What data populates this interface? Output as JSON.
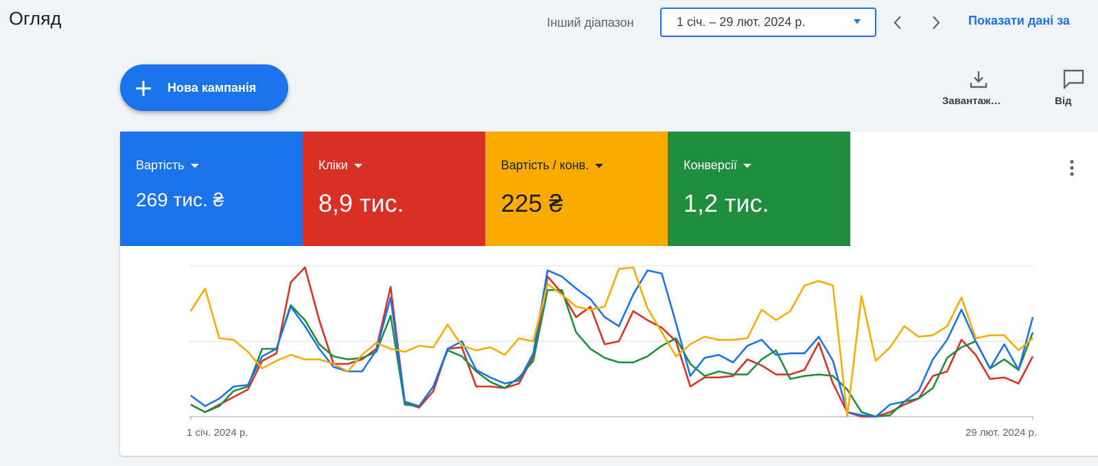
{
  "header": {
    "title": "Огляд",
    "range_label": "Інший діапазон",
    "date_range": "1 січ. – 29 лют. 2024 р.",
    "compare_link": "Показати дані за"
  },
  "toolbar": {
    "new_campaign": "Нова кампанія",
    "download": "Завантаж…",
    "feedback": "Від"
  },
  "chart_data": {
    "type": "line",
    "categories": [
      "1 січ. 2024 р.",
      null,
      null,
      null,
      null,
      null,
      null,
      null,
      null,
      null,
      null,
      null,
      null,
      null,
      null,
      null,
      null,
      null,
      null,
      null,
      null,
      null,
      null,
      null,
      null,
      null,
      null,
      null,
      null,
      null,
      null,
      null,
      null,
      null,
      null,
      null,
      null,
      null,
      null,
      null,
      null,
      null,
      null,
      null,
      null,
      null,
      null,
      null,
      null,
      null,
      null,
      null,
      null,
      null,
      null,
      null,
      null,
      null,
      null,
      "29 лют. 2024 р."
    ],
    "ylim": [
      0,
      100
    ],
    "gridlines": [
      0,
      50,
      100
    ],
    "series": [
      {
        "name": "Вартість",
        "total": "269 тис. ₴",
        "color": "#1a73e8",
        "text_color": "#ffffff",
        "values": [
          14,
          7,
          12,
          20,
          21,
          40,
          45,
          73,
          60,
          45,
          33,
          30,
          30,
          44,
          79,
          10,
          7,
          20,
          45,
          50,
          31,
          26,
          22,
          24,
          42,
          97,
          93,
          85,
          78,
          66,
          60,
          81,
          97,
          95,
          62,
          27,
          39,
          41,
          36,
          47,
          51,
          41,
          42,
          42,
          53,
          37,
          3,
          1,
          0,
          8,
          10,
          17,
          38,
          51,
          71,
          50,
          32,
          48,
          31,
          66
        ]
      },
      {
        "name": "Кліки",
        "total": "8,9 тис.",
        "color": "#d93025",
        "text_color": "#ffffff",
        "values": [
          8,
          3,
          8,
          13,
          18,
          37,
          42,
          89,
          99,
          64,
          35,
          35,
          38,
          45,
          86,
          9,
          6,
          17,
          45,
          46,
          20,
          20,
          19,
          22,
          40,
          93,
          82,
          66,
          73,
          48,
          50,
          70,
          64,
          59,
          50,
          20,
          26,
          26,
          27,
          38,
          34,
          28,
          28,
          31,
          49,
          22,
          3,
          0,
          0,
          3,
          8,
          12,
          27,
          30,
          51,
          41,
          25,
          26,
          22,
          40
        ]
      },
      {
        "name": "Вартість / конв.",
        "total": "225 ₴",
        "color": "#f9ab00",
        "text_color": "#202124",
        "values": [
          70,
          85,
          52,
          51,
          43,
          32,
          37,
          41,
          38,
          38,
          35,
          30,
          41,
          49,
          45,
          43,
          47,
          46,
          61,
          47,
          44,
          46,
          41,
          52,
          50,
          88,
          81,
          73,
          71,
          73,
          98,
          99,
          72,
          56,
          40,
          48,
          53,
          51,
          51,
          52,
          71,
          64,
          70,
          87,
          90,
          87,
          0,
          80,
          37,
          46,
          60,
          53,
          54,
          60,
          79,
          52,
          54,
          54,
          44,
          52
        ]
      },
      {
        "name": "Конверсії",
        "total": "1,2 тис.",
        "color": "#1e8e3e",
        "text_color": "#ffffff",
        "values": [
          8,
          3,
          7,
          17,
          20,
          45,
          45,
          74,
          64,
          48,
          40,
          38,
          39,
          43,
          67,
          8,
          7,
          20,
          44,
          40,
          30,
          23,
          19,
          26,
          37,
          84,
          84,
          56,
          45,
          39,
          36,
          36,
          40,
          47,
          52,
          35,
          27,
          30,
          28,
          28,
          38,
          44,
          25,
          27,
          28,
          27,
          18,
          3,
          0,
          1,
          10,
          12,
          19,
          39,
          46,
          50,
          32,
          38,
          31,
          56
        ]
      }
    ]
  }
}
